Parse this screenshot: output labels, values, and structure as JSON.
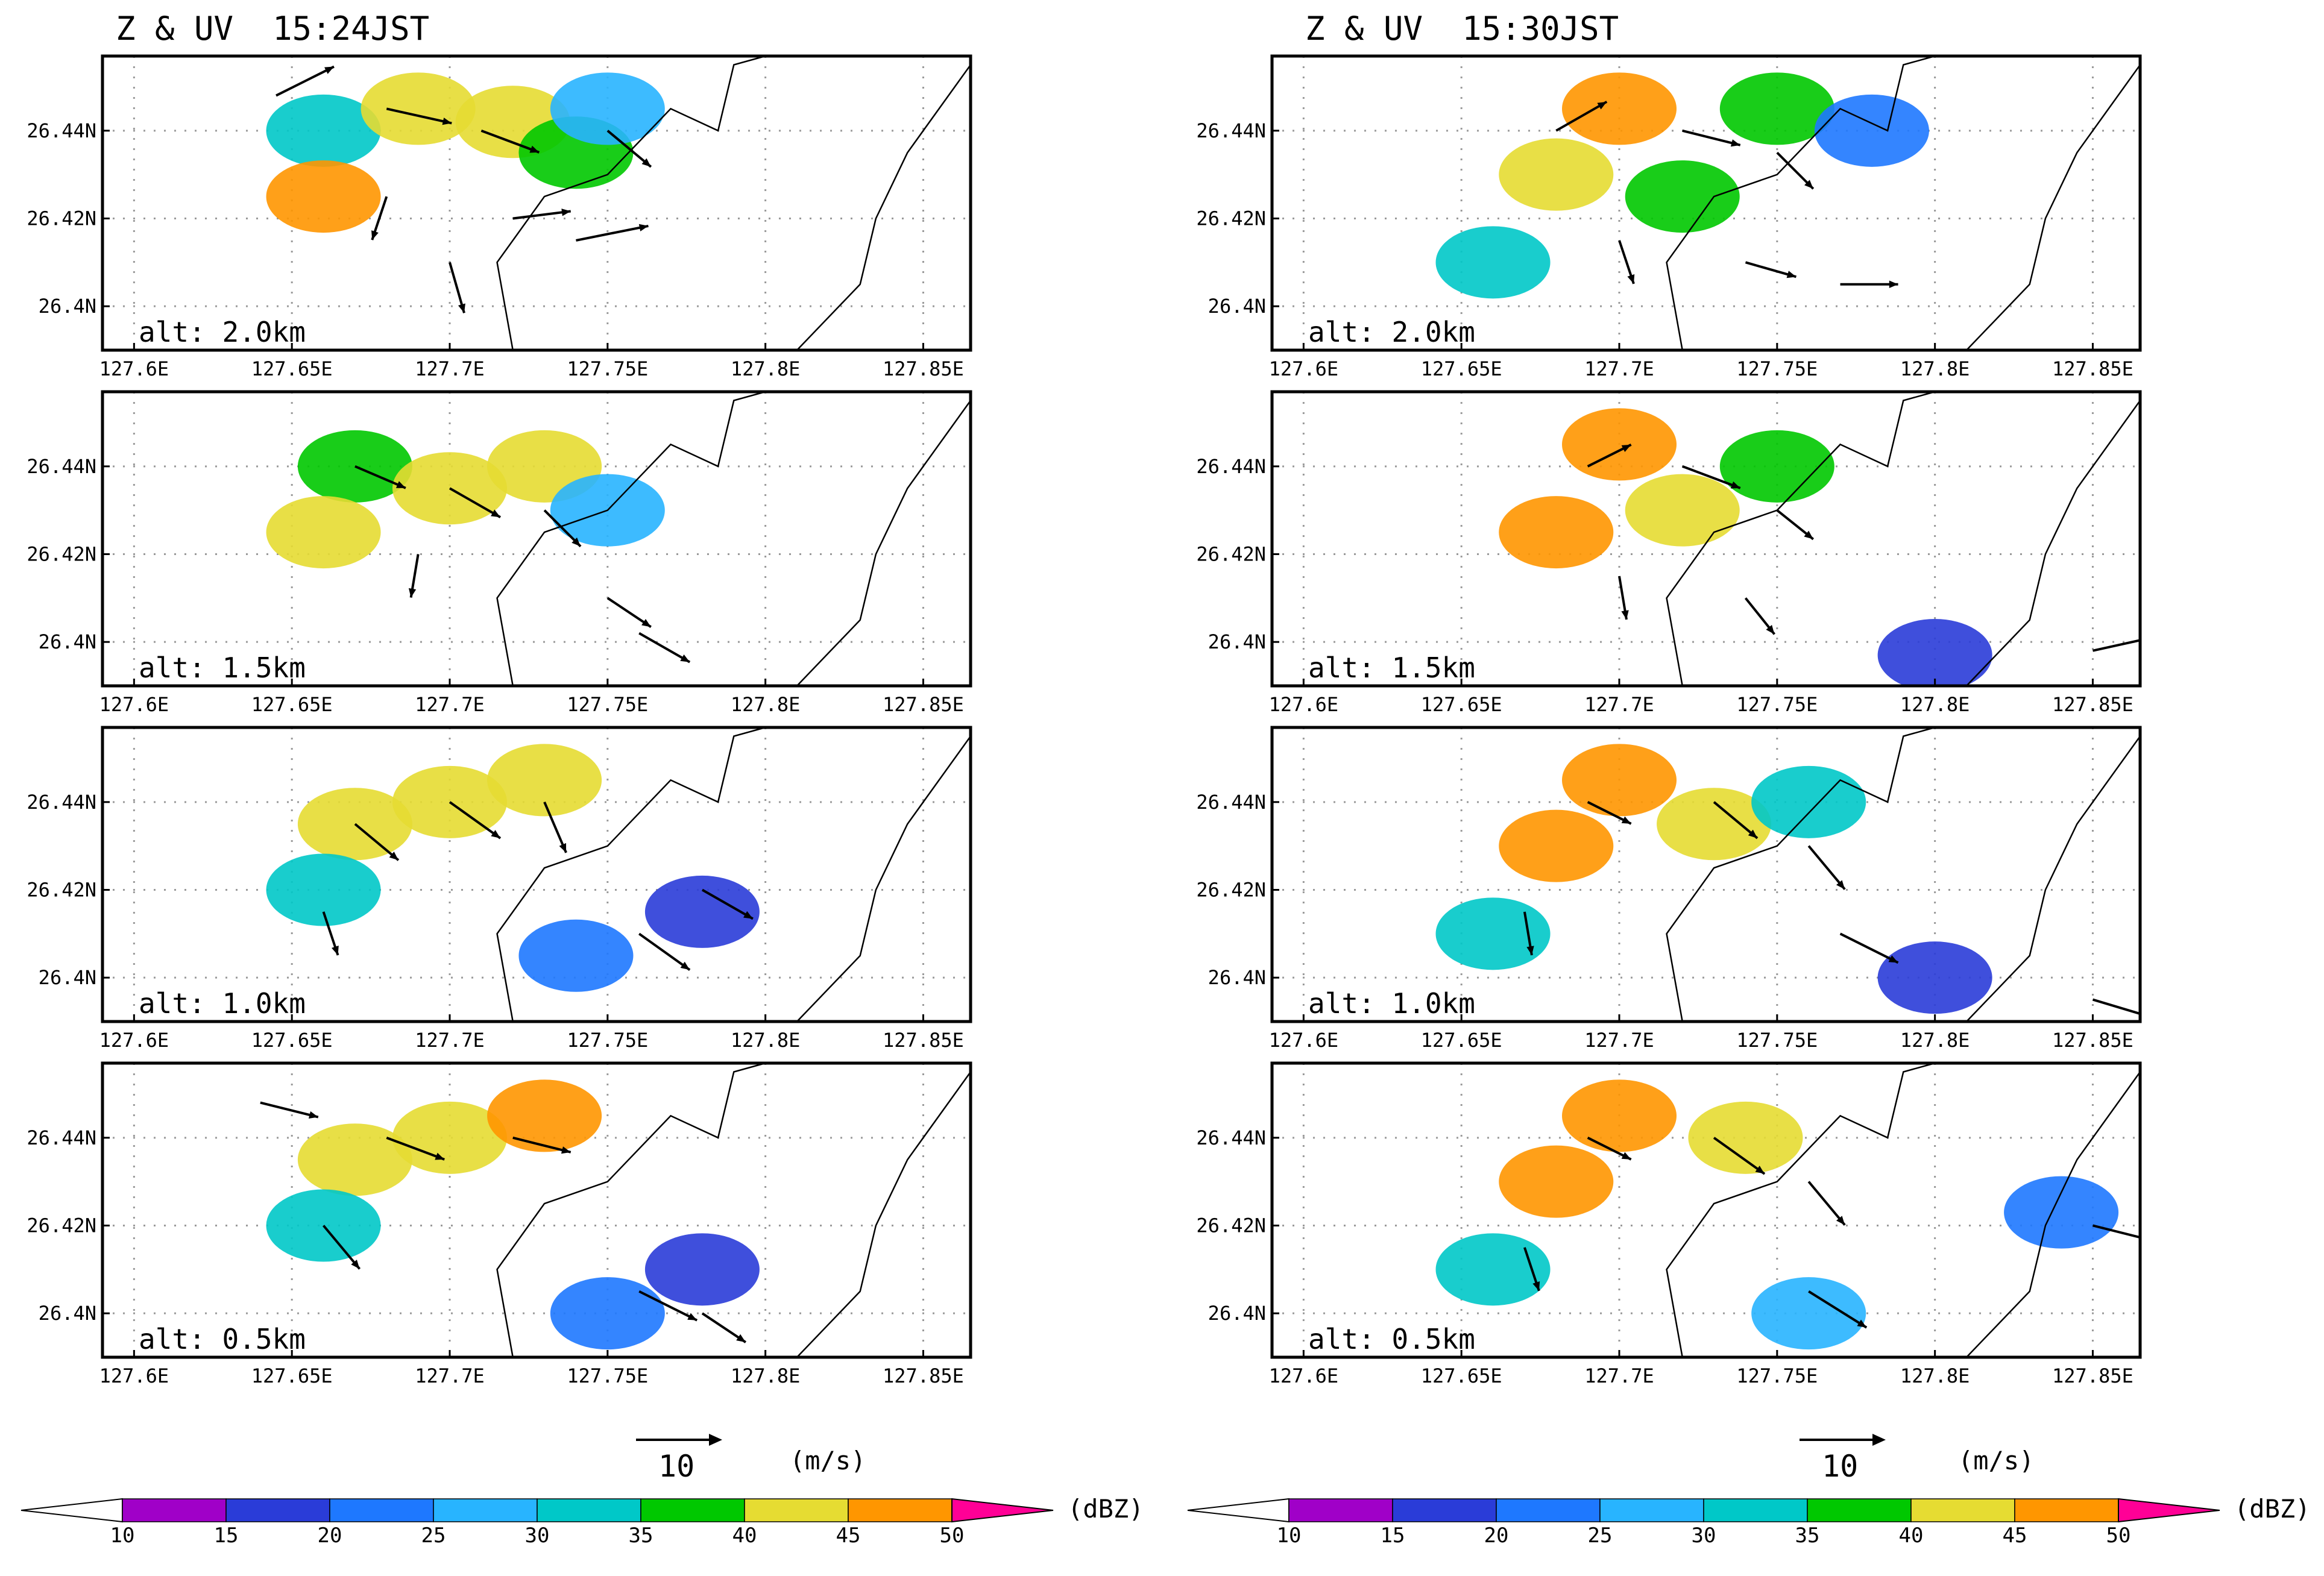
{
  "figure": {
    "colors": {
      "background": "#ffffff",
      "frame": "#000000",
      "coast": "#000000",
      "grid": "#9a9a9a",
      "arrow": "#000000"
    }
  },
  "panels_meta": {
    "columns": [
      {
        "title": "Z & UV  15:24JST"
      },
      {
        "title": "Z & UV  15:30JST"
      }
    ],
    "alt_labels": [
      "alt: 2.0km",
      "alt: 1.5km",
      "alt: 1.0km",
      "alt: 0.5km"
    ],
    "x_tick_labels": [
      "127.6E",
      "127.65E",
      "127.7E",
      "127.75E",
      "127.8E",
      "127.85E"
    ],
    "y_tick_labels": [
      "26.44N",
      "26.42N",
      "26.4N"
    ]
  },
  "vector_key": {
    "label": "10",
    "unit": "(m/s)"
  },
  "colorbar": {
    "unit": "(dBZ)",
    "levels": [
      "10",
      "15",
      "20",
      "25",
      "30",
      "35",
      "40",
      "45",
      "50"
    ],
    "colors": [
      "#a000c8",
      "#2a3cd8",
      "#1e78ff",
      "#28b4ff",
      "#00c8c8",
      "#00c800",
      "#e6dc32",
      "#ff9600",
      "#fa3c3c",
      "#ff0096"
    ]
  },
  "chart_data": [
    {
      "type": "heatmap",
      "title": "Z & UV  15:24JST",
      "annotation": "alt: 2.0km",
      "xlim": [
        127.59,
        127.865
      ],
      "ylim": [
        26.39,
        26.457
      ],
      "grid": true,
      "scale_value": "10",
      "scale_unit": "(m/s)",
      "reflectivity_cells": [
        {
          "lon": 127.66,
          "lat": 26.44,
          "dbz": 30
        },
        {
          "lon": 127.69,
          "lat": 26.445,
          "dbz": 40
        },
        {
          "lon": 127.72,
          "lat": 26.442,
          "dbz": 40
        },
        {
          "lon": 127.66,
          "lat": 26.425,
          "dbz": 45
        },
        {
          "lon": 127.74,
          "lat": 26.435,
          "dbz": 35
        },
        {
          "lon": 127.75,
          "lat": 26.445,
          "dbz": 25
        }
      ],
      "wind_vectors": [
        {
          "lon": 127.645,
          "lat": 26.448,
          "u": 8,
          "v": 4
        },
        {
          "lon": 127.68,
          "lat": 26.445,
          "u": 9,
          "v": -2
        },
        {
          "lon": 127.71,
          "lat": 26.44,
          "u": 8,
          "v": -3
        },
        {
          "lon": 127.75,
          "lat": 26.44,
          "u": 6,
          "v": -5
        },
        {
          "lon": 127.68,
          "lat": 26.425,
          "u": -2,
          "v": -6
        },
        {
          "lon": 127.72,
          "lat": 26.42,
          "u": 8,
          "v": 1
        },
        {
          "lon": 127.74,
          "lat": 26.415,
          "u": 10,
          "v": 2
        },
        {
          "lon": 127.7,
          "lat": 26.41,
          "u": 2,
          "v": -7
        }
      ]
    },
    {
      "type": "heatmap",
      "title": "Z & UV  15:24JST",
      "annotation": "alt: 1.5km",
      "xlim": [
        127.59,
        127.865
      ],
      "ylim": [
        26.39,
        26.457
      ],
      "grid": true,
      "scale_value": "10",
      "scale_unit": "(m/s)",
      "reflectivity_cells": [
        {
          "lon": 127.67,
          "lat": 26.44,
          "dbz": 35
        },
        {
          "lon": 127.7,
          "lat": 26.435,
          "dbz": 40
        },
        {
          "lon": 127.73,
          "lat": 26.44,
          "dbz": 40
        },
        {
          "lon": 127.66,
          "lat": 26.425,
          "dbz": 40
        },
        {
          "lon": 127.75,
          "lat": 26.43,
          "dbz": 25
        }
      ],
      "wind_vectors": [
        {
          "lon": 127.67,
          "lat": 26.44,
          "u": 7,
          "v": -3
        },
        {
          "lon": 127.7,
          "lat": 26.435,
          "u": 7,
          "v": -4
        },
        {
          "lon": 127.73,
          "lat": 26.43,
          "u": 5,
          "v": -5
        },
        {
          "lon": 127.69,
          "lat": 26.42,
          "u": -1,
          "v": -6
        },
        {
          "lon": 127.75,
          "lat": 26.41,
          "u": 6,
          "v": -4
        },
        {
          "lon": 127.76,
          "lat": 26.402,
          "u": 7,
          "v": -4
        }
      ]
    },
    {
      "type": "heatmap",
      "title": "Z & UV  15:24JST",
      "annotation": "alt: 1.0km",
      "xlim": [
        127.59,
        127.865
      ],
      "ylim": [
        26.39,
        26.457
      ],
      "grid": true,
      "scale_value": "10",
      "scale_unit": "(m/s)",
      "reflectivity_cells": [
        {
          "lon": 127.67,
          "lat": 26.435,
          "dbz": 40
        },
        {
          "lon": 127.7,
          "lat": 26.44,
          "dbz": 40
        },
        {
          "lon": 127.73,
          "lat": 26.445,
          "dbz": 40
        },
        {
          "lon": 127.66,
          "lat": 26.42,
          "dbz": 30
        },
        {
          "lon": 127.74,
          "lat": 26.405,
          "dbz": 20
        },
        {
          "lon": 127.78,
          "lat": 26.415,
          "dbz": 15
        }
      ],
      "wind_vectors": [
        {
          "lon": 127.67,
          "lat": 26.435,
          "u": 6,
          "v": -5
        },
        {
          "lon": 127.7,
          "lat": 26.44,
          "u": 7,
          "v": -5
        },
        {
          "lon": 127.73,
          "lat": 26.44,
          "u": 3,
          "v": -7
        },
        {
          "lon": 127.66,
          "lat": 26.415,
          "u": 2,
          "v": -6
        },
        {
          "lon": 127.76,
          "lat": 26.41,
          "u": 7,
          "v": -5
        },
        {
          "lon": 127.78,
          "lat": 26.42,
          "u": 7,
          "v": -4
        }
      ]
    },
    {
      "type": "heatmap",
      "title": "Z & UV  15:24JST",
      "annotation": "alt: 0.5km",
      "xlim": [
        127.59,
        127.865
      ],
      "ylim": [
        26.39,
        26.457
      ],
      "grid": true,
      "scale_value": "10",
      "scale_unit": "(m/s)",
      "reflectivity_cells": [
        {
          "lon": 127.67,
          "lat": 26.435,
          "dbz": 40
        },
        {
          "lon": 127.7,
          "lat": 26.44,
          "dbz": 40
        },
        {
          "lon": 127.73,
          "lat": 26.445,
          "dbz": 45
        },
        {
          "lon": 127.66,
          "lat": 26.42,
          "dbz": 30
        },
        {
          "lon": 127.75,
          "lat": 26.4,
          "dbz": 20
        },
        {
          "lon": 127.78,
          "lat": 26.41,
          "dbz": 15
        }
      ],
      "wind_vectors": [
        {
          "lon": 127.64,
          "lat": 26.448,
          "u": 8,
          "v": -2
        },
        {
          "lon": 127.68,
          "lat": 26.44,
          "u": 8,
          "v": -3
        },
        {
          "lon": 127.72,
          "lat": 26.44,
          "u": 8,
          "v": -2
        },
        {
          "lon": 127.66,
          "lat": 26.42,
          "u": 5,
          "v": -6
        },
        {
          "lon": 127.76,
          "lat": 26.405,
          "u": 8,
          "v": -4
        },
        {
          "lon": 127.78,
          "lat": 26.4,
          "u": 6,
          "v": -4
        }
      ]
    },
    {
      "type": "heatmap",
      "title": "Z & UV  15:30JST",
      "annotation": "alt: 2.0km",
      "xlim": [
        127.59,
        127.865
      ],
      "ylim": [
        26.39,
        26.457
      ],
      "grid": true,
      "scale_value": "10",
      "scale_unit": "(m/s)",
      "reflectivity_cells": [
        {
          "lon": 127.7,
          "lat": 26.445,
          "dbz": 45
        },
        {
          "lon": 127.68,
          "lat": 26.43,
          "dbz": 40
        },
        {
          "lon": 127.72,
          "lat": 26.425,
          "dbz": 35
        },
        {
          "lon": 127.75,
          "lat": 26.445,
          "dbz": 35
        },
        {
          "lon": 127.78,
          "lat": 26.44,
          "dbz": 20
        },
        {
          "lon": 127.66,
          "lat": 26.41,
          "dbz": 30
        }
      ],
      "wind_vectors": [
        {
          "lon": 127.68,
          "lat": 26.44,
          "u": 7,
          "v": 4
        },
        {
          "lon": 127.72,
          "lat": 26.44,
          "u": 8,
          "v": -2
        },
        {
          "lon": 127.75,
          "lat": 26.435,
          "u": 5,
          "v": -5
        },
        {
          "lon": 127.7,
          "lat": 26.415,
          "u": 2,
          "v": -6
        },
        {
          "lon": 127.74,
          "lat": 26.41,
          "u": 7,
          "v": -2
        },
        {
          "lon": 127.77,
          "lat": 26.405,
          "u": 8,
          "v": 0
        }
      ]
    },
    {
      "type": "heatmap",
      "title": "Z & UV  15:30JST",
      "annotation": "alt: 1.5km",
      "xlim": [
        127.59,
        127.865
      ],
      "ylim": [
        26.39,
        26.457
      ],
      "grid": true,
      "scale_value": "10",
      "scale_unit": "(m/s)",
      "reflectivity_cells": [
        {
          "lon": 127.7,
          "lat": 26.445,
          "dbz": 45
        },
        {
          "lon": 127.68,
          "lat": 26.425,
          "dbz": 45
        },
        {
          "lon": 127.72,
          "lat": 26.43,
          "dbz": 40
        },
        {
          "lon": 127.75,
          "lat": 26.44,
          "dbz": 35
        },
        {
          "lon": 127.8,
          "lat": 26.397,
          "dbz": 15
        }
      ],
      "wind_vectors": [
        {
          "lon": 127.69,
          "lat": 26.44,
          "u": 6,
          "v": 3
        },
        {
          "lon": 127.72,
          "lat": 26.44,
          "u": 8,
          "v": -3
        },
        {
          "lon": 127.75,
          "lat": 26.43,
          "u": 5,
          "v": -4
        },
        {
          "lon": 127.7,
          "lat": 26.415,
          "u": 1,
          "v": -6
        },
        {
          "lon": 127.74,
          "lat": 26.41,
          "u": 4,
          "v": -5
        },
        {
          "lon": 127.85,
          "lat": 26.398,
          "u": 9,
          "v": 2
        }
      ]
    },
    {
      "type": "heatmap",
      "title": "Z & UV  15:30JST",
      "annotation": "alt: 1.0km",
      "xlim": [
        127.59,
        127.865
      ],
      "ylim": [
        26.39,
        26.457
      ],
      "grid": true,
      "scale_value": "10",
      "scale_unit": "(m/s)",
      "reflectivity_cells": [
        {
          "lon": 127.7,
          "lat": 26.445,
          "dbz": 45
        },
        {
          "lon": 127.68,
          "lat": 26.43,
          "dbz": 45
        },
        {
          "lon": 127.73,
          "lat": 26.435,
          "dbz": 40
        },
        {
          "lon": 127.76,
          "lat": 26.44,
          "dbz": 30
        },
        {
          "lon": 127.66,
          "lat": 26.41,
          "dbz": 30
        },
        {
          "lon": 127.8,
          "lat": 26.4,
          "dbz": 15
        }
      ],
      "wind_vectors": [
        {
          "lon": 127.69,
          "lat": 26.44,
          "u": 6,
          "v": -3
        },
        {
          "lon": 127.73,
          "lat": 26.44,
          "u": 6,
          "v": -5
        },
        {
          "lon": 127.76,
          "lat": 26.43,
          "u": 5,
          "v": -6
        },
        {
          "lon": 127.67,
          "lat": 26.415,
          "u": 1,
          "v": -6
        },
        {
          "lon": 127.77,
          "lat": 26.41,
          "u": 8,
          "v": -4
        },
        {
          "lon": 127.85,
          "lat": 26.395,
          "u": 10,
          "v": -3
        }
      ]
    },
    {
      "type": "heatmap",
      "title": "Z & UV  15:30JST",
      "annotation": "alt: 0.5km",
      "xlim": [
        127.59,
        127.865
      ],
      "ylim": [
        26.39,
        26.457
      ],
      "grid": true,
      "scale_value": "10",
      "scale_unit": "(m/s)",
      "reflectivity_cells": [
        {
          "lon": 127.7,
          "lat": 26.445,
          "dbz": 45
        },
        {
          "lon": 127.68,
          "lat": 26.43,
          "dbz": 45
        },
        {
          "lon": 127.74,
          "lat": 26.44,
          "dbz": 40
        },
        {
          "lon": 127.66,
          "lat": 26.41,
          "dbz": 30
        },
        {
          "lon": 127.76,
          "lat": 26.4,
          "dbz": 25
        },
        {
          "lon": 127.84,
          "lat": 26.423,
          "dbz": 20
        }
      ],
      "wind_vectors": [
        {
          "lon": 127.69,
          "lat": 26.44,
          "u": 6,
          "v": -3
        },
        {
          "lon": 127.73,
          "lat": 26.44,
          "u": 7,
          "v": -5
        },
        {
          "lon": 127.76,
          "lat": 26.43,
          "u": 5,
          "v": -6
        },
        {
          "lon": 127.67,
          "lat": 26.415,
          "u": 2,
          "v": -6
        },
        {
          "lon": 127.76,
          "lat": 26.405,
          "u": 8,
          "v": -5
        },
        {
          "lon": 127.85,
          "lat": 26.42,
          "u": 8,
          "v": -2
        }
      ]
    }
  ]
}
